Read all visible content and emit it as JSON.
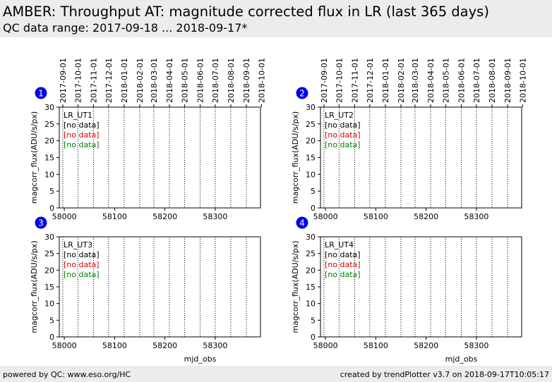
{
  "header": {
    "title": "AMBER: Throughput AT: magnitude corrected flux in LR (last 365 days)",
    "subtitle": "QC data range: 2017-09-18 ... 2018-09-17*"
  },
  "footer": {
    "left": "powered by QC: www.eso.org/HC",
    "right": "created by trendPlotter v3.7 on 2018-09-17T10:05:17"
  },
  "colors": {
    "badge": "#0000ee",
    "no_data_1": "#000000",
    "no_data_2": "#dd0000",
    "no_data_3": "#008000"
  },
  "chart_data": [
    {
      "type": "scatter",
      "panel": "1",
      "series_label": "LR_UT1",
      "annotations": [
        "[no data]",
        "[no data]",
        "[no data]"
      ],
      "xlabel": "",
      "ylabel": "magcorr_flux(ADU/s/px)",
      "xlim": [
        57990,
        58390
      ],
      "ylim": [
        0,
        30
      ],
      "xticks": [
        58000,
        58100,
        58200,
        58300
      ],
      "yticks": [
        0,
        5,
        10,
        15,
        20,
        25,
        30
      ],
      "date_ticks": [
        {
          "label": "2017-09-01",
          "mjd": 57997
        },
        {
          "label": "2017-10-01",
          "mjd": 58027
        },
        {
          "label": "2017-11-01",
          "mjd": 58058
        },
        {
          "label": "2017-12-01",
          "mjd": 58088
        },
        {
          "label": "2018-01-01",
          "mjd": 58119
        },
        {
          "label": "2018-02-01",
          "mjd": 58150
        },
        {
          "label": "2018-03-01",
          "mjd": 58178
        },
        {
          "label": "2018-04-01",
          "mjd": 58209
        },
        {
          "label": "2018-05-01",
          "mjd": 58239
        },
        {
          "label": "2018-06-01",
          "mjd": 58270
        },
        {
          "label": "2018-07-01",
          "mjd": 58300
        },
        {
          "label": "2018-08-01",
          "mjd": 58331
        },
        {
          "label": "2018-09-01",
          "mjd": 58362
        },
        {
          "label": "2018-10-01",
          "mjd": 58392
        }
      ],
      "series": []
    },
    {
      "type": "scatter",
      "panel": "2",
      "series_label": "LR_UT2",
      "annotations": [
        "[no data]",
        "[no data]",
        "[no data]"
      ],
      "xlabel": "",
      "ylabel": "magcorr_flux(ADU/s/px)",
      "xlim": [
        57990,
        58390
      ],
      "ylim": [
        0,
        30
      ],
      "xticks": [
        58000,
        58100,
        58200,
        58300
      ],
      "yticks": [
        0,
        5,
        10,
        15,
        20,
        25,
        30
      ],
      "date_ticks": [
        {
          "label": "2017-09-01",
          "mjd": 57997
        },
        {
          "label": "2017-10-01",
          "mjd": 58027
        },
        {
          "label": "2017-11-01",
          "mjd": 58058
        },
        {
          "label": "2017-12-01",
          "mjd": 58088
        },
        {
          "label": "2018-01-01",
          "mjd": 58119
        },
        {
          "label": "2018-02-01",
          "mjd": 58150
        },
        {
          "label": "2018-03-01",
          "mjd": 58178
        },
        {
          "label": "2018-04-01",
          "mjd": 58209
        },
        {
          "label": "2018-05-01",
          "mjd": 58239
        },
        {
          "label": "2018-06-01",
          "mjd": 58270
        },
        {
          "label": "2018-07-01",
          "mjd": 58300
        },
        {
          "label": "2018-08-01",
          "mjd": 58331
        },
        {
          "label": "2018-09-01",
          "mjd": 58362
        },
        {
          "label": "2018-10-01",
          "mjd": 58392
        }
      ],
      "series": []
    },
    {
      "type": "scatter",
      "panel": "3",
      "series_label": "LR_UT3",
      "annotations": [
        "[no data]",
        "[no data]",
        "[no data]"
      ],
      "xlabel": "mjd_obs",
      "ylabel": "magcorr_flux(ADU/s/px)",
      "xlim": [
        57990,
        58390
      ],
      "ylim": [
        0,
        30
      ],
      "xticks": [
        58000,
        58100,
        58200,
        58300
      ],
      "yticks": [
        0,
        5,
        10,
        15,
        20,
        25,
        30
      ],
      "date_ticks": [],
      "series": []
    },
    {
      "type": "scatter",
      "panel": "4",
      "series_label": "LR_UT4",
      "annotations": [
        "[no data]",
        "[no data]",
        "[no data]"
      ],
      "xlabel": "mjd_obs",
      "ylabel": "magcorr_flux(ADU/s/px)",
      "xlim": [
        57990,
        58390
      ],
      "ylim": [
        0,
        30
      ],
      "xticks": [
        58000,
        58100,
        58200,
        58300
      ],
      "yticks": [
        0,
        5,
        10,
        15,
        20,
        25,
        30
      ],
      "date_ticks": [],
      "series": []
    }
  ]
}
